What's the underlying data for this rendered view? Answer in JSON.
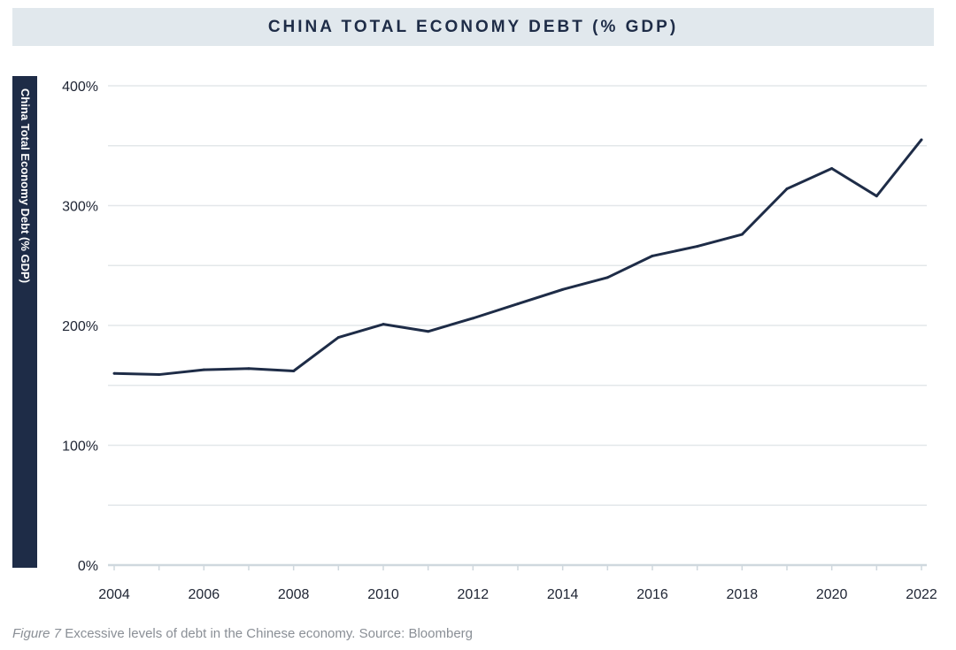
{
  "chart_data": {
    "type": "line",
    "title": "CHINA TOTAL ECONOMY DEBT (% GDP)",
    "ylabel": "China Total Economy Debt (% GDP)",
    "xlabel": "",
    "ylim": [
      0,
      400
    ],
    "xlim": [
      2004,
      2022
    ],
    "yticks": [
      0,
      100,
      200,
      300,
      400
    ],
    "ytick_labels": [
      "0%",
      "100%",
      "200%",
      "300%",
      "400%"
    ],
    "xtick_labels": [
      "2004",
      "2006",
      "2008",
      "2010",
      "2012",
      "2014",
      "2016",
      "2018",
      "2020",
      "2022"
    ],
    "grid": true,
    "series": [
      {
        "name": "China Total Economy Debt (% GDP)",
        "color": "#1e2c47",
        "x": [
          2004,
          2005,
          2006,
          2007,
          2008,
          2009,
          2010,
          2011,
          2012,
          2013,
          2014,
          2015,
          2016,
          2017,
          2018,
          2019,
          2020,
          2021,
          2022
        ],
        "values": [
          160,
          159,
          163,
          164,
          162,
          190,
          201,
          195,
          206,
          218,
          230,
          240,
          258,
          266,
          276,
          314,
          331,
          308,
          355
        ]
      }
    ]
  },
  "caption": {
    "figure": "Figure 7",
    "text": " Excessive levels of debt in the Chinese economy. Source: Bloomberg"
  }
}
